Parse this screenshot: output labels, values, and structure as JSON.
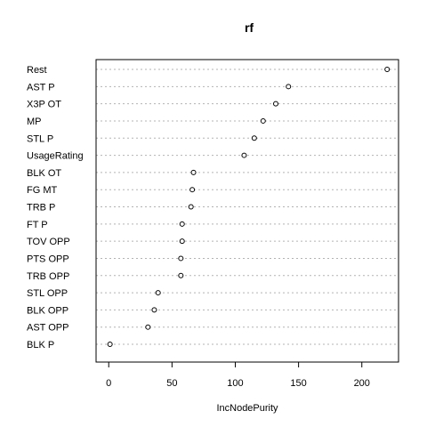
{
  "chart_data": {
    "type": "scatter",
    "subtype": "dotchart",
    "title": "rf",
    "xlabel": "IncNodePurity",
    "ylabel": "",
    "xlim": [
      -10,
      229
    ],
    "x_ticks": [
      0,
      50,
      100,
      150,
      200
    ],
    "grid": "dotted horizontal guide lines per category",
    "categories": [
      "Rest",
      "AST P",
      "X3P OT",
      "MP",
      "STL P",
      "UsageRating",
      "BLK OT",
      "FG MT",
      "TRB P",
      "FT P",
      "TOV OPP",
      "PTS OPP",
      "TRB OPP",
      "STL OPP",
      "BLK OPP",
      "AST OPP",
      "BLK P"
    ],
    "values": [
      220,
      142,
      132,
      122,
      115,
      107,
      67,
      66,
      65,
      58,
      58,
      57,
      57,
      39,
      36,
      31,
      1
    ]
  }
}
